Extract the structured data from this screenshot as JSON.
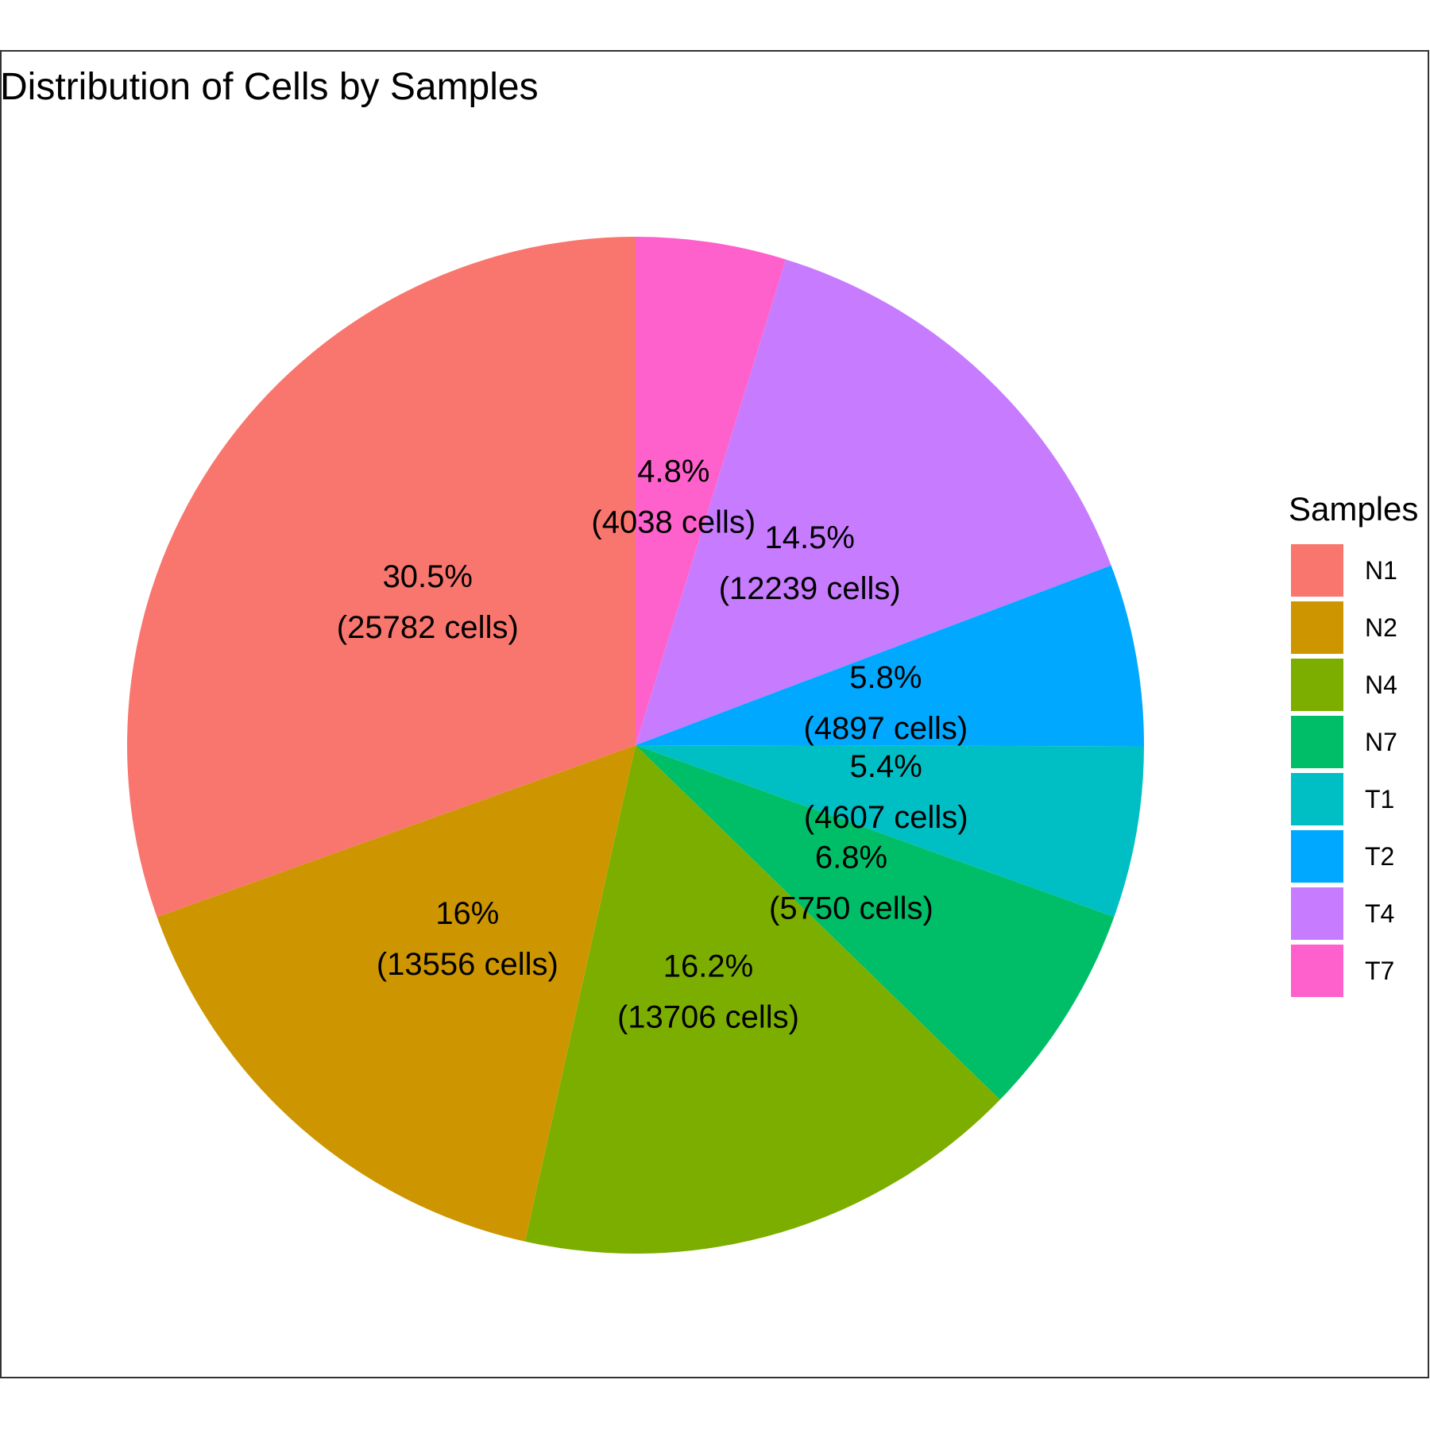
{
  "chart_data": {
    "type": "pie",
    "title": "Distribution of Cells by Samples",
    "legend_title": "Samples",
    "legend_position": "right",
    "slices": [
      {
        "name": "N1",
        "value": 25782,
        "percent_label": "30.5%",
        "count_label": "(25782 cells)",
        "color": "#F8766D"
      },
      {
        "name": "N2",
        "value": 13556,
        "percent_label": "16%",
        "count_label": "(13556 cells)",
        "color": "#CD9600"
      },
      {
        "name": "N4",
        "value": 13706,
        "percent_label": "16.2%",
        "count_label": "(13706 cells)",
        "color": "#7CAE00"
      },
      {
        "name": "N7",
        "value": 5750,
        "percent_label": "6.8%",
        "count_label": "(5750 cells)",
        "color": "#00BE67"
      },
      {
        "name": "T1",
        "value": 4607,
        "percent_label": "5.4%",
        "count_label": "(4607 cells)",
        "color": "#00BFC4"
      },
      {
        "name": "T2",
        "value": 4897,
        "percent_label": "5.8%",
        "count_label": "(4897 cells)",
        "color": "#00A9FF"
      },
      {
        "name": "T4",
        "value": 12239,
        "percent_label": "14.5%",
        "count_label": "(12239 cells)",
        "color": "#C77CFF"
      },
      {
        "name": "T7",
        "value": 4038,
        "percent_label": "4.8%",
        "count_label": "(4038 cells)",
        "color": "#FF61CC"
      }
    ]
  }
}
